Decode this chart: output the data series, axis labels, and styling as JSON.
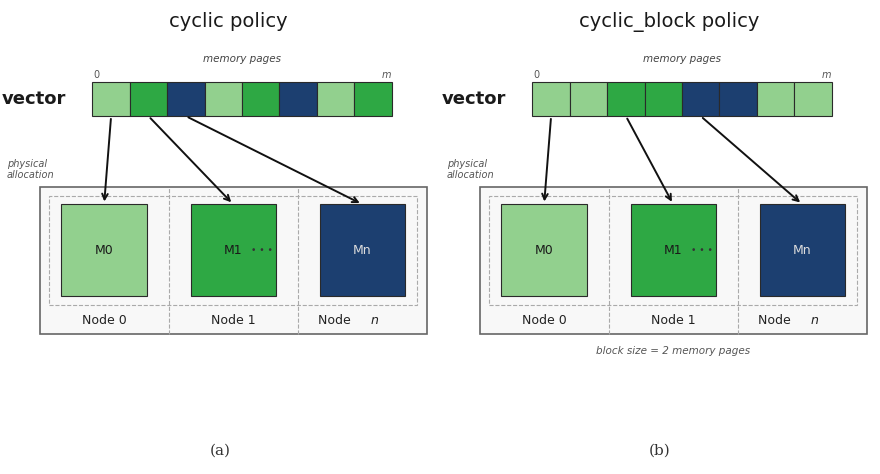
{
  "bg_color": "#ffffff",
  "light_green": "#92d08e",
  "mid_green": "#2ea844",
  "dark_blue": "#1c3f70",
  "cyclic_pages": [
    "light_green",
    "mid_green",
    "dark_blue",
    "light_green",
    "mid_green",
    "dark_blue",
    "light_green",
    "mid_green"
  ],
  "cyclic_block_pages": [
    "light_green",
    "light_green",
    "mid_green",
    "mid_green",
    "dark_blue",
    "dark_blue",
    "light_green",
    "light_green"
  ],
  "node_colors": [
    "light_green",
    "mid_green",
    "dark_blue"
  ],
  "node_labels": [
    "M0",
    "M1",
    "Mn"
  ],
  "node_names": [
    "Node 0",
    "Node 1",
    "Node n"
  ],
  "title_a": "cyclic policy",
  "title_b": "cyclic_block policy",
  "label_memory_pages": "memory pages",
  "label_vector": "vector",
  "label_physical": "physical\nallocation",
  "label_block_size": "block size = 2 memory pages",
  "label_a": "(a)",
  "label_b": "(b)",
  "arrow_src_cyclic": [
    0,
    1,
    2
  ],
  "arrow_src_cyclic_block": [
    0,
    2,
    4
  ]
}
